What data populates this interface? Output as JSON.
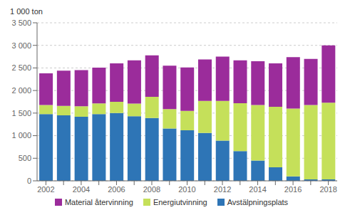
{
  "chart_data": {
    "type": "bar",
    "stacked": true,
    "ylabel": "1 000 ton",
    "categories": [
      "2002",
      null,
      "2004",
      null,
      "2006",
      null,
      "2008",
      null,
      "2010",
      null,
      "2012",
      null,
      "2014",
      null,
      "2016",
      null,
      "2018"
    ],
    "series": [
      {
        "name": "Avstälpningsplats",
        "color": "#2e75b6",
        "values": [
          1480,
          1450,
          1420,
          1480,
          1500,
          1430,
          1390,
          1160,
          1120,
          1060,
          890,
          660,
          450,
          300,
          100,
          30,
          30
        ]
      },
      {
        "name": "Energiutvinning",
        "color": "#c5e05a",
        "values": [
          200,
          210,
          230,
          235,
          250,
          280,
          470,
          430,
          430,
          710,
          880,
          1060,
          1230,
          1340,
          1500,
          1650,
          1700
        ]
      },
      {
        "name": "Material återvinning",
        "color": "#9b2c9b",
        "values": [
          700,
          780,
          800,
          790,
          850,
          960,
          920,
          960,
          960,
          920,
          980,
          950,
          970,
          960,
          1140,
          1020,
          1270
        ]
      }
    ],
    "ylim": [
      0,
      3500
    ],
    "yticks": [
      0,
      500,
      {
        "value": 1000,
        "label": "1 000"
      },
      {
        "value": 1500,
        "label": "1 500"
      },
      {
        "value": 2000,
        "label": "2 000"
      },
      {
        "value": 2500,
        "label": "2 500"
      },
      {
        "value": 3000,
        "label": "3 000"
      },
      {
        "value": 3500,
        "label": "3 500"
      }
    ],
    "grid": "y",
    "legend": "bottom"
  }
}
